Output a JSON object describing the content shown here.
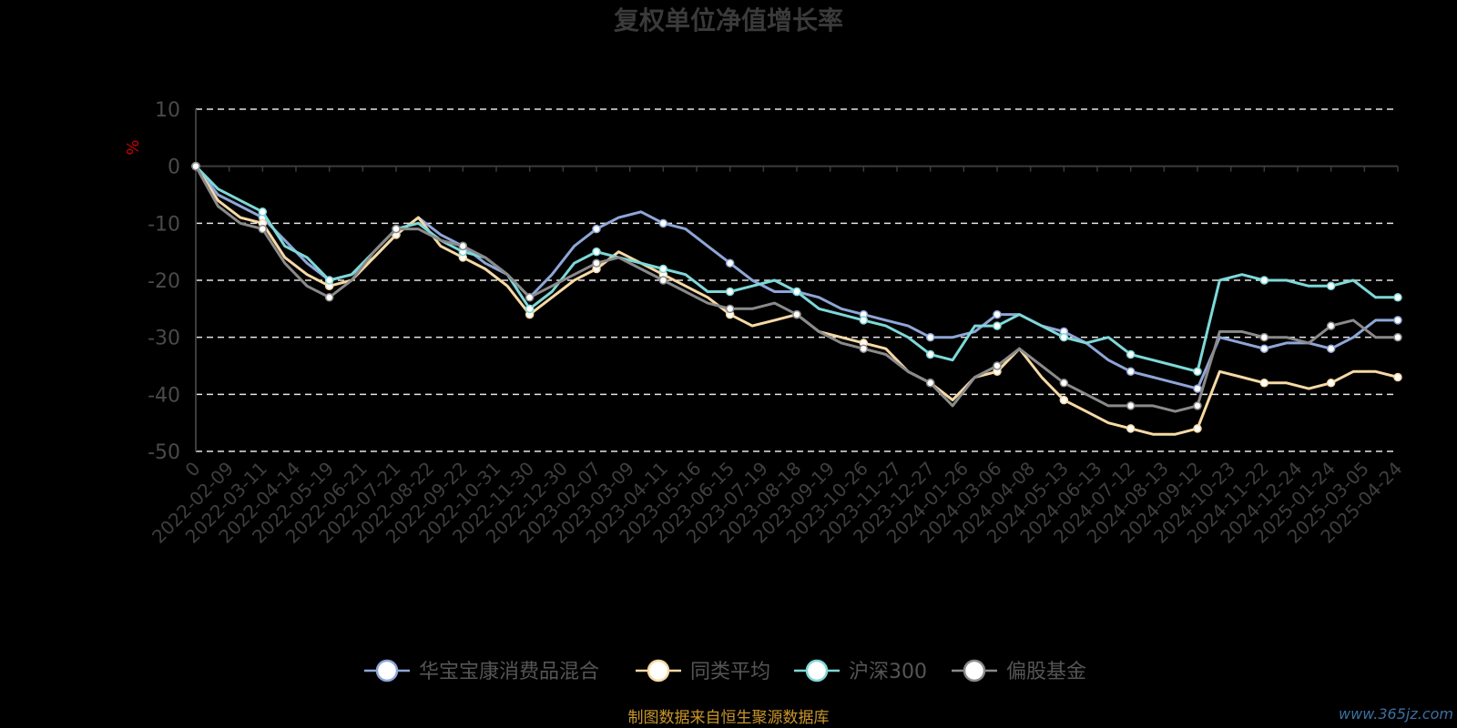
{
  "chart_data": {
    "type": "line",
    "title": "复权单位净值增长率",
    "ylabel": "%",
    "ylim": [
      -50,
      10
    ],
    "yticks": [
      10,
      0,
      -10,
      -20,
      -30,
      -40,
      -50
    ],
    "grid": true,
    "legend_position": "bottom",
    "x_tick_labels": [
      "0",
      "2022-02-09",
      "2022-03-11",
      "2022-04-14",
      "2022-05-19",
      "2022-06-21",
      "2022-07-21",
      "2022-08-22",
      "2022-09-22",
      "2022-10-31",
      "2022-11-30",
      "2022-12-30",
      "2023-02-07",
      "2023-03-09",
      "2023-04-11",
      "2023-05-16",
      "2023-06-15",
      "2023-07-19",
      "2023-08-18",
      "2023-09-19",
      "2023-10-26",
      "2023-11-27",
      "2023-12-27",
      "2024-01-26",
      "2024-03-06",
      "2024-04-08",
      "2024-05-13",
      "2024-06-13",
      "2024-07-12",
      "2024-08-13",
      "2024-09-12",
      "2024-10-23",
      "2024-11-22",
      "2024-12-24",
      "2025-01-24",
      "2025-03-05",
      "2025-04-24"
    ],
    "series": [
      {
        "name": "华宝宝康消费品混合",
        "color": "#8ea6d8",
        "values": [
          0,
          -5,
          -7,
          -9,
          -13,
          -17,
          -20,
          -19,
          -16,
          -12,
          -9,
          -12,
          -14,
          -17,
          -19,
          -23,
          -19,
          -14,
          -11,
          -9,
          -8,
          -10,
          -11,
          -14,
          -17,
          -20,
          -22,
          -22,
          -23,
          -25,
          -26,
          -27,
          -28,
          -30,
          -30,
          -29,
          -26,
          -26,
          -28,
          -29,
          -31,
          -34,
          -36,
          -37,
          -38,
          -39,
          -30,
          -31,
          -32,
          -31,
          -31,
          -32,
          -30,
          -27,
          -27
        ]
      },
      {
        "name": "同类平均",
        "color": "#f7d9a5",
        "values": [
          0,
          -6,
          -9,
          -10,
          -16,
          -19,
          -21,
          -20,
          -16,
          -12,
          -9,
          -14,
          -16,
          -18,
          -21,
          -26,
          -23,
          -20,
          -18,
          -15,
          -17,
          -19,
          -21,
          -23,
          -26,
          -28,
          -27,
          -26,
          -29,
          -30,
          -31,
          -32,
          -36,
          -38,
          -41,
          -37,
          -36,
          -32,
          -37,
          -41,
          -43,
          -45,
          -46,
          -47,
          -47,
          -46,
          -36,
          -37,
          -38,
          -38,
          -39,
          -38,
          -36,
          -36,
          -37
        ]
      },
      {
        "name": "沪深300",
        "color": "#7ed8d8",
        "values": [
          0,
          -4,
          -6,
          -8,
          -14,
          -16,
          -20,
          -19,
          -15,
          -11,
          -10,
          -13,
          -15,
          -16,
          -19,
          -25,
          -22,
          -17,
          -15,
          -16,
          -17,
          -18,
          -19,
          -22,
          -22,
          -21,
          -20,
          -22,
          -25,
          -26,
          -27,
          -28,
          -30,
          -33,
          -34,
          -28,
          -28,
          -26,
          -28,
          -30,
          -31,
          -30,
          -33,
          -34,
          -35,
          -36,
          -20,
          -19,
          -20,
          -20,
          -21,
          -21,
          -20,
          -23,
          -23
        ]
      },
      {
        "name": "偏股基金",
        "color": "#8a8a8a",
        "values": [
          0,
          -7,
          -10,
          -11,
          -17,
          -21,
          -23,
          -20,
          -15,
          -11,
          -11,
          -13,
          -14,
          -16,
          -19,
          -23,
          -21,
          -19,
          -17,
          -16,
          -18,
          -20,
          -22,
          -24,
          -25,
          -25,
          -24,
          -26,
          -29,
          -31,
          -32,
          -33,
          -36,
          -38,
          -42,
          -37,
          -35,
          -32,
          -35,
          -38,
          -40,
          -42,
          -42,
          -42,
          -43,
          -42,
          -29,
          -29,
          -30,
          -30,
          -31,
          -28,
          -27,
          -30,
          -30
        ]
      }
    ]
  },
  "source_text": "制图数据来自恒生聚源数据库",
  "watermark_text": "www.365jz.com"
}
